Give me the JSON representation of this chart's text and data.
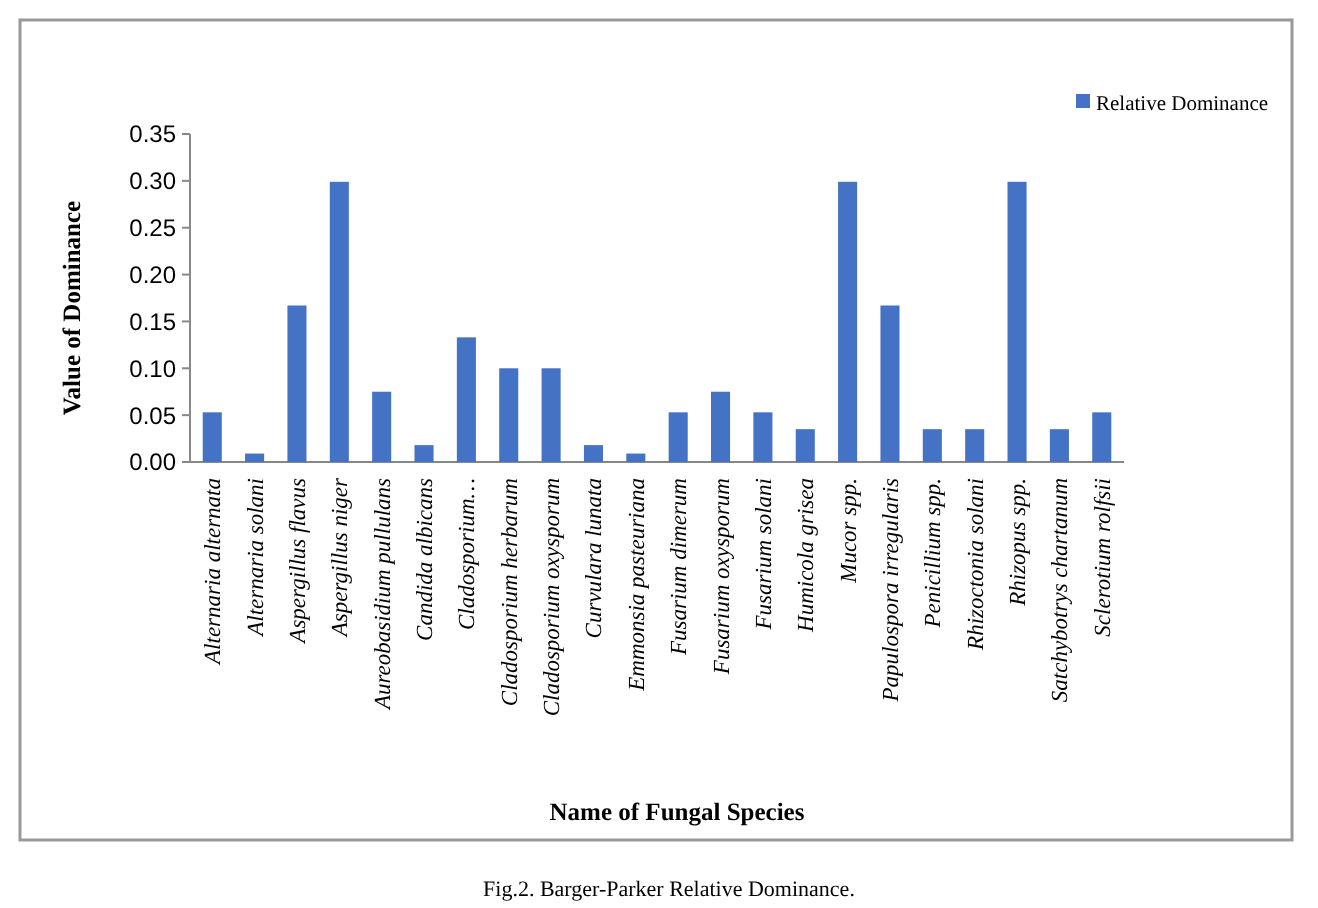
{
  "chart_data": {
    "type": "bar",
    "xlabel": "Name of Fungal Species",
    "ylabel": "Value of Dominance",
    "categories": [
      "Alternaria alternata",
      "Alternaria solani",
      "Aspergillus flavus",
      "Aspergillus niger",
      "Aureobasidium pullulans",
      "Candida albicans",
      "Cladosporium…",
      "Cladosporium herbarum",
      "Cladosporium oxysporum",
      "Curvulara lunata",
      "Emmonsia pasteuriana",
      "Fusarium dimerum",
      "Fusarium oxysporum",
      "Fusarium solani",
      "Humicola grisea",
      "Mucor spp.",
      "Papulospora irregularis",
      "Penicillium spp.",
      "Rhizoctonia solani",
      "Rhizopus spp.",
      "Satchybotrys chartanum",
      "Sclerotium rolfsii"
    ],
    "series": [
      {
        "name": "Relative Dominance",
        "color": "#4472c4",
        "values": [
          0.053,
          0.009,
          0.167,
          0.299,
          0.075,
          0.018,
          0.133,
          0.1,
          0.1,
          0.018,
          0.009,
          0.053,
          0.075,
          0.053,
          0.035,
          0.299,
          0.167,
          0.035,
          0.035,
          0.299,
          0.035,
          0.053
        ]
      }
    ],
    "ylim": [
      0,
      0.35
    ],
    "yticks": [
      {
        "value": 0,
        "label": "0.00"
      },
      {
        "value": 0.05,
        "label": "0.05"
      },
      {
        "value": 0.1,
        "label": "0.10"
      },
      {
        "value": 0.15,
        "label": "0.15"
      },
      {
        "value": 0.2,
        "label": "0.20"
      },
      {
        "value": 0.25,
        "label": "0.25"
      },
      {
        "value": 0.3,
        "label": "0.30"
      },
      {
        "value": 0.35,
        "label": "0.35"
      }
    ],
    "legend": "top right",
    "grid": false,
    "annotations": [
      "Fig.2. Barger-Parker Relative  Dominance."
    ]
  }
}
